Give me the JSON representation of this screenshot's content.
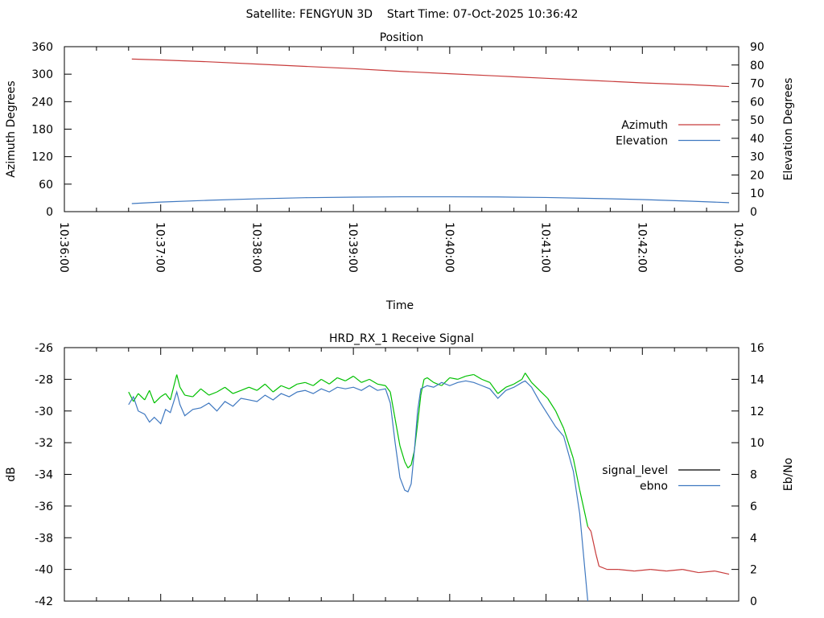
{
  "header": {
    "title": "Satellite: FENGYUN 3D    Start Time: 07-Oct-2025 10:36:42"
  },
  "chart_data": [
    {
      "type": "line",
      "title": "Position",
      "xlabel": "Time",
      "ylabel": "Azimuth Degrees",
      "y2label": "Elevation Degrees",
      "xlim_seconds_after_10_36_00": [
        0,
        420
      ],
      "xticks": [
        "10:36:00",
        "10:37:00",
        "10:38:00",
        "10:39:00",
        "10:40:00",
        "10:41:00",
        "10:42:00",
        "10:43:00"
      ],
      "ylim": [
        0,
        360
      ],
      "yticks": [
        "0",
        "60",
        "120",
        "180",
        "240",
        "300",
        "360"
      ],
      "y2lim": [
        0,
        90
      ],
      "y2ticks": [
        "0",
        "10",
        "20",
        "30",
        "40",
        "50",
        "60",
        "70",
        "80",
        "90"
      ],
      "legend_position": "right",
      "series": [
        {
          "name": "Azimuth",
          "axis": "y",
          "color": "#c83c3c",
          "x": [
            42,
            60,
            90,
            120,
            150,
            180,
            210,
            240,
            270,
            300,
            330,
            360,
            390,
            414
          ],
          "values": [
            333,
            331,
            327,
            322,
            317,
            312,
            306,
            301,
            296,
            291,
            286,
            281,
            277,
            273
          ]
        },
        {
          "name": "Elevation",
          "axis": "y2",
          "color": "#3f78c0",
          "x": [
            42,
            60,
            90,
            120,
            150,
            180,
            210,
            240,
            270,
            300,
            330,
            360,
            390,
            414
          ],
          "values": [
            4.4,
            5.2,
            6.2,
            7.0,
            7.6,
            7.9,
            8.1,
            8.1,
            8.0,
            7.7,
            7.2,
            6.6,
            5.7,
            4.9
          ]
        }
      ]
    },
    {
      "type": "line",
      "title": "HRD_RX_1 Receive Signal",
      "ylabel": "dB",
      "y2label": "Eb/No",
      "xlim_seconds_after_10_36_00": [
        0,
        420
      ],
      "ylim": [
        -42,
        -26
      ],
      "yticks": [
        "-42",
        "-40",
        "-38",
        "-36",
        "-34",
        "-32",
        "-30",
        "-28",
        "-26"
      ],
      "y2lim": [
        0,
        16
      ],
      "y2ticks": [
        "0",
        "2",
        "4",
        "6",
        "8",
        "10",
        "12",
        "14",
        "16"
      ],
      "legend_position": "right",
      "series": [
        {
          "name": "signal_level",
          "axis": "y",
          "color": "#000000",
          "color_locked": "#00c000",
          "color_unlocked": "#c83c3c",
          "x": [
            40,
            43,
            46,
            50,
            53,
            56,
            60,
            63,
            66,
            70,
            72,
            75,
            80,
            85,
            90,
            95,
            100,
            105,
            110,
            115,
            120,
            125,
            130,
            135,
            140,
            145,
            150,
            155,
            160,
            165,
            170,
            175,
            180,
            185,
            190,
            195,
            200,
            203,
            206,
            209,
            212,
            214,
            216,
            218,
            220,
            222,
            224,
            226,
            230,
            235,
            240,
            245,
            250,
            255,
            260,
            265,
            270,
            275,
            280,
            285,
            287,
            291,
            296,
            301,
            306,
            311,
            317,
            321,
            326,
            328,
            331,
            333,
            338,
            345,
            355,
            365,
            375,
            385,
            395,
            405,
            414
          ],
          "values": [
            -28.8,
            -29.4,
            -28.9,
            -29.3,
            -28.7,
            -29.5,
            -29.1,
            -28.9,
            -29.3,
            -27.7,
            -28.5,
            -29.0,
            -29.1,
            -28.6,
            -29.0,
            -28.8,
            -28.5,
            -28.9,
            -28.7,
            -28.5,
            -28.7,
            -28.3,
            -28.8,
            -28.4,
            -28.6,
            -28.3,
            -28.2,
            -28.4,
            -28.0,
            -28.3,
            -27.9,
            -28.1,
            -27.8,
            -28.2,
            -28.0,
            -28.3,
            -28.4,
            -28.8,
            -30.5,
            -32.2,
            -33.2,
            -33.6,
            -33.4,
            -32.5,
            -30.8,
            -29.0,
            -28.0,
            -27.9,
            -28.2,
            -28.4,
            -27.9,
            -28.0,
            -27.8,
            -27.7,
            -28.0,
            -28.2,
            -28.9,
            -28.5,
            -28.3,
            -28.0,
            -27.6,
            -28.2,
            -28.7,
            -29.2,
            -30.0,
            -31.1,
            -33.0,
            -35.0,
            -37.3,
            -37.6,
            -39.0,
            -39.8,
            -40.0,
            -40.0,
            -40.1,
            -40.0,
            -40.1,
            -40.0,
            -40.2,
            -40.1,
            -40.3
          ]
        },
        {
          "name": "ebno",
          "axis": "y2",
          "color": "#3f78c0",
          "x": [
            40,
            43,
            46,
            50,
            53,
            56,
            60,
            63,
            66,
            70,
            72,
            75,
            80,
            85,
            90,
            95,
            100,
            105,
            110,
            115,
            120,
            125,
            130,
            135,
            140,
            145,
            150,
            155,
            160,
            165,
            170,
            175,
            180,
            185,
            190,
            195,
            200,
            203,
            206,
            209,
            212,
            214,
            216,
            218,
            220,
            222,
            224,
            226,
            230,
            235,
            240,
            245,
            250,
            255,
            260,
            265,
            270,
            275,
            280,
            285,
            287,
            291,
            296,
            301,
            306,
            311,
            317,
            321,
            326
          ],
          "values": [
            12.4,
            12.9,
            12.0,
            11.8,
            11.3,
            11.6,
            11.2,
            12.1,
            11.9,
            13.2,
            12.4,
            11.7,
            12.1,
            12.2,
            12.5,
            12.0,
            12.6,
            12.3,
            12.8,
            12.7,
            12.6,
            13.0,
            12.7,
            13.1,
            12.9,
            13.2,
            13.3,
            13.1,
            13.4,
            13.2,
            13.5,
            13.4,
            13.5,
            13.3,
            13.6,
            13.3,
            13.4,
            12.5,
            10.0,
            7.8,
            7.0,
            6.9,
            7.4,
            9.5,
            12.0,
            13.4,
            13.5,
            13.6,
            13.5,
            13.8,
            13.6,
            13.8,
            13.9,
            13.8,
            13.6,
            13.4,
            12.8,
            13.3,
            13.5,
            13.8,
            13.9,
            13.5,
            12.6,
            11.8,
            11.0,
            10.4,
            8.2,
            5.5,
            0.0
          ]
        }
      ]
    }
  ]
}
